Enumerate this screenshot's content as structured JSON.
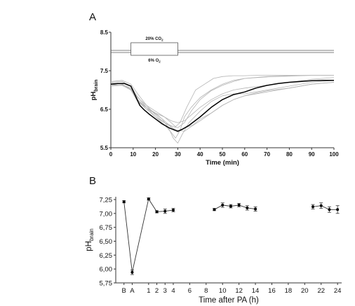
{
  "chart_data": [
    {
      "panel": "A",
      "type": "line",
      "xlabel": "Time (min)",
      "ylabel": "pH",
      "ylabel_sub": "brain",
      "xlim": [
        0,
        100
      ],
      "ylim": [
        5.5,
        8.5
      ],
      "x_ticks": [
        0,
        10,
        20,
        30,
        40,
        50,
        60,
        70,
        80,
        90,
        100
      ],
      "y_ticks": [
        "5.5",
        "6.5",
        "7.5",
        "8.5"
      ],
      "y_tick_values": [
        5.5,
        6.5,
        7.5,
        8.5
      ],
      "annotations": [
        {
          "label": "20% CO",
          "sub": "2",
          "x_range": [
            9,
            30
          ]
        },
        {
          "label": "6% O",
          "sub": "2",
          "x_range": [
            9,
            30
          ]
        }
      ],
      "series": [
        {
          "role": "mean",
          "x": [
            0,
            3,
            6,
            9,
            11,
            13,
            15,
            17,
            20,
            23,
            26,
            29,
            30,
            32,
            35,
            40,
            45,
            50,
            55,
            60,
            65,
            70,
            75,
            80,
            85,
            90,
            95,
            100
          ],
          "y": [
            7.15,
            7.17,
            7.17,
            7.1,
            6.85,
            6.6,
            6.48,
            6.38,
            6.25,
            6.12,
            6.02,
            5.95,
            5.93,
            5.98,
            6.08,
            6.3,
            6.55,
            6.75,
            6.88,
            6.95,
            7.05,
            7.12,
            7.17,
            7.2,
            7.22,
            7.24,
            7.25,
            7.25
          ]
        },
        {
          "role": "individual",
          "x": [
            0,
            5,
            9,
            12,
            16,
            20,
            24,
            28,
            30,
            33,
            36,
            40,
            45,
            50,
            55,
            60,
            70,
            80,
            90,
            100
          ],
          "y": [
            7.12,
            7.14,
            7.05,
            6.75,
            6.5,
            6.3,
            6.15,
            6.05,
            6.02,
            6.15,
            6.45,
            6.75,
            6.98,
            7.12,
            7.22,
            7.3,
            7.35,
            7.37,
            7.38,
            7.38
          ]
        },
        {
          "role": "individual",
          "x": [
            0,
            5,
            9,
            12,
            16,
            20,
            24,
            27,
            29,
            31,
            33,
            36,
            40,
            45,
            50,
            55,
            60,
            70,
            80,
            90,
            100
          ],
          "y": [
            7.2,
            7.22,
            7.1,
            6.82,
            6.55,
            6.3,
            6.1,
            5.9,
            5.75,
            5.95,
            6.3,
            6.55,
            6.8,
            7.0,
            7.15,
            7.25,
            7.3,
            7.34,
            7.36,
            7.38,
            7.38
          ]
        },
        {
          "role": "individual",
          "x": [
            0,
            5,
            9,
            12,
            16,
            20,
            24,
            28,
            30,
            33,
            37,
            40,
            45,
            50,
            55,
            60,
            70,
            80,
            90,
            100
          ],
          "y": [
            7.18,
            7.16,
            7.0,
            6.7,
            6.55,
            6.4,
            6.2,
            6.0,
            5.9,
            6.0,
            6.1,
            6.25,
            6.4,
            6.6,
            6.75,
            6.85,
            6.95,
            7.05,
            7.15,
            7.2
          ]
        },
        {
          "role": "individual",
          "x": [
            0,
            5,
            9,
            12,
            16,
            20,
            24,
            27,
            29,
            31,
            34,
            38,
            42,
            46,
            50,
            55,
            60,
            65,
            70,
            80,
            90,
            100
          ],
          "y": [
            7.15,
            7.13,
            7.05,
            6.8,
            6.6,
            6.45,
            6.3,
            6.15,
            6.05,
            6.15,
            6.55,
            7.0,
            7.15,
            7.3,
            7.35,
            7.37,
            7.37,
            7.38,
            7.38,
            7.38,
            7.38,
            7.38
          ]
        },
        {
          "role": "individual",
          "x": [
            0,
            5,
            9,
            12,
            16,
            20,
            24,
            28,
            30,
            33,
            36,
            40,
            45,
            50,
            55,
            60,
            65,
            70,
            80,
            90,
            100
          ],
          "y": [
            7.22,
            7.25,
            7.15,
            6.9,
            6.6,
            6.35,
            6.15,
            6.0,
            5.95,
            5.93,
            6.05,
            6.2,
            6.4,
            6.6,
            6.75,
            6.85,
            6.92,
            6.98,
            7.05,
            7.15,
            7.2
          ]
        },
        {
          "role": "individual",
          "x": [
            0,
            5,
            9,
            12,
            16,
            20,
            24,
            27,
            30,
            33,
            36,
            40,
            45,
            50,
            55,
            60,
            70,
            80,
            90,
            100
          ],
          "y": [
            7.1,
            7.12,
            7.0,
            6.7,
            6.5,
            6.4,
            6.3,
            6.2,
            6.15,
            6.2,
            6.35,
            6.55,
            6.75,
            6.9,
            7.0,
            7.05,
            7.12,
            7.2,
            7.28,
            7.32
          ]
        },
        {
          "role": "individual",
          "x": [
            0,
            5,
            9,
            12,
            16,
            20,
            23,
            26,
            28,
            30,
            32,
            35,
            40,
            45,
            50,
            55,
            60,
            65,
            70,
            80,
            90,
            100
          ],
          "y": [
            7.12,
            7.14,
            7.02,
            6.75,
            6.55,
            6.38,
            6.25,
            6.0,
            5.75,
            5.62,
            5.85,
            6.15,
            6.45,
            6.7,
            6.85,
            6.9,
            6.9,
            6.95,
            7.0,
            7.1,
            7.2,
            7.25
          ]
        }
      ]
    },
    {
      "panel": "B",
      "type": "line",
      "xlabel": "Time after PA (h)",
      "ylabel": "pH",
      "ylabel_sub": "brain",
      "ylim": [
        5.75,
        7.3
      ],
      "y_ticks": [
        "5,75",
        "6,00",
        "6,25",
        "6,50",
        "6,75",
        "7,00",
        "7,25"
      ],
      "y_tick_values": [
        5.75,
        6.0,
        6.25,
        6.5,
        6.75,
        7.0,
        7.25
      ],
      "x_tick_labels": [
        {
          "label": "B",
          "x": -2
        },
        {
          "label": "A",
          "x": -1
        },
        {
          "label": "1",
          "x": 1
        },
        {
          "label": "2",
          "x": 2
        },
        {
          "label": "3",
          "x": 3
        },
        {
          "label": "4",
          "x": 4
        },
        {
          "label": "6",
          "x": 6
        },
        {
          "label": "8",
          "x": 8
        },
        {
          "label": "10",
          "x": 10
        },
        {
          "label": "12",
          "x": 12
        },
        {
          "label": "14",
          "x": 14
        },
        {
          "label": "16",
          "x": 16
        },
        {
          "label": "18",
          "x": 18
        },
        {
          "label": "20",
          "x": 20
        },
        {
          "label": "22",
          "x": 22
        },
        {
          "label": "24",
          "x": 24
        }
      ],
      "xlim": [
        -3,
        24.5
      ],
      "segments": [
        {
          "x": [
            -2,
            -1,
            1,
            2,
            3,
            4
          ],
          "y": [
            7.21,
            5.94,
            7.26,
            7.03,
            7.04,
            7.06
          ],
          "err": [
            0.02,
            0.04,
            0.02,
            0.02,
            0.04,
            0.03
          ]
        },
        {
          "x": [
            9,
            10,
            11,
            12,
            13,
            14
          ],
          "y": [
            7.07,
            7.15,
            7.13,
            7.15,
            7.1,
            7.08
          ],
          "err": [
            0.02,
            0.04,
            0.03,
            0.03,
            0.04,
            0.04
          ]
        },
        {
          "x": [
            21,
            22,
            23,
            24
          ],
          "y": [
            7.12,
            7.14,
            7.07,
            7.07
          ],
          "err": [
            0.04,
            0.05,
            0.05,
            0.07
          ]
        }
      ]
    }
  ],
  "panels": {
    "A": {
      "letter": "A"
    },
    "B": {
      "letter": "B"
    }
  },
  "colors": {
    "mean": "#000000",
    "individual": "#b4b4b4",
    "axis": "#333333"
  }
}
